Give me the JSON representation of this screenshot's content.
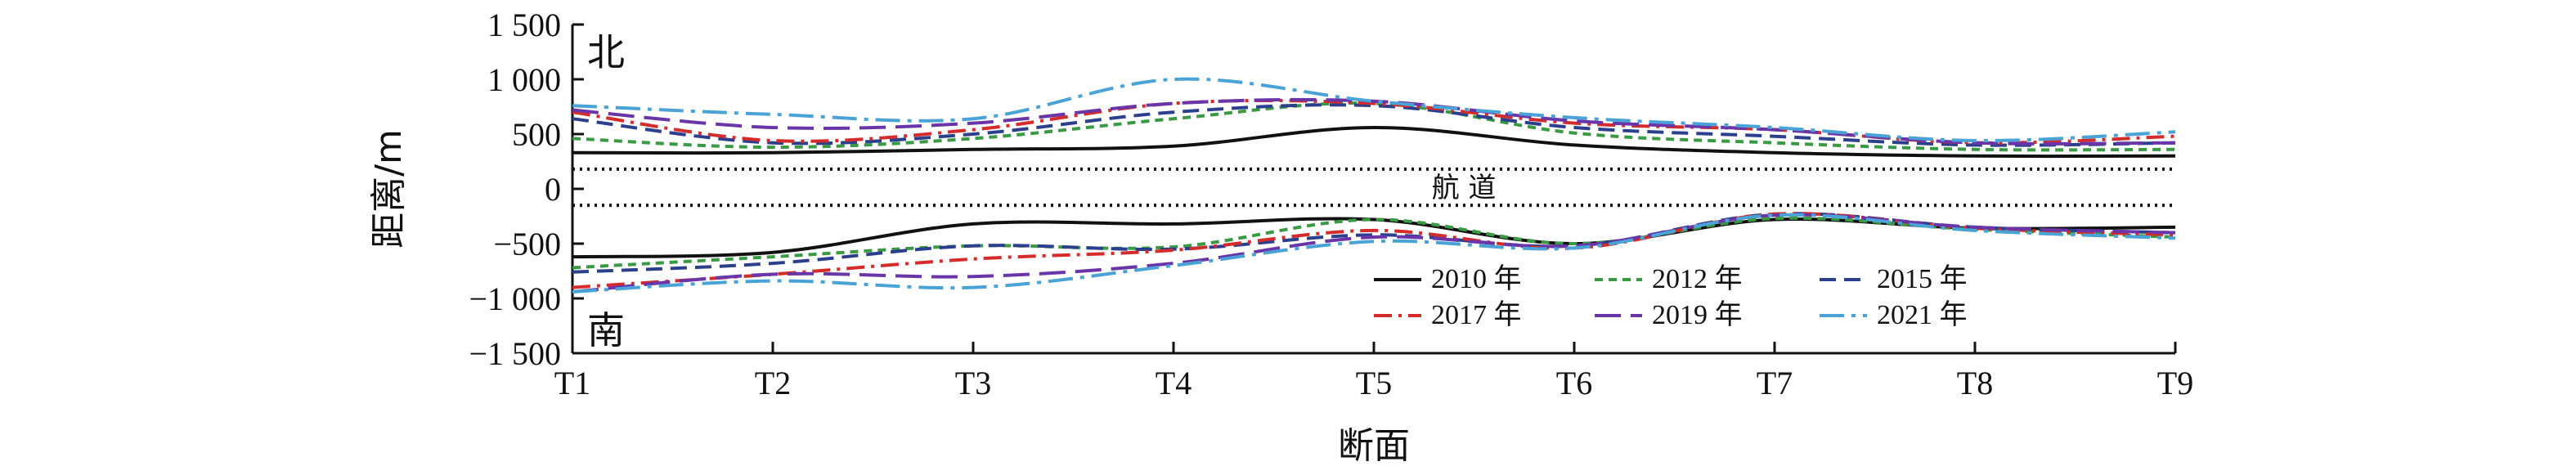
{
  "chart_data": {
    "type": "line",
    "title": "",
    "xlabel": "断面",
    "ylabel": "距离/m",
    "categories": [
      "T1",
      "T2",
      "T3",
      "T4",
      "T5",
      "T6",
      "T7",
      "T8",
      "T9"
    ],
    "x_ticks": [
      "T1",
      "T2",
      "T3",
      "T4",
      "T5",
      "T6",
      "T7",
      "T8",
      "T9"
    ],
    "y_ticks": [
      {
        "value": 1500,
        "label": "1 500"
      },
      {
        "value": 1000,
        "label": "1 000"
      },
      {
        "value": 500,
        "label": "500"
      },
      {
        "value": 0,
        "label": "0"
      },
      {
        "value": -500,
        "label": "−500"
      },
      {
        "value": -1000,
        "label": "−1 000"
      },
      {
        "value": -1500,
        "label": "−1 500"
      }
    ],
    "ylim": [
      -1500,
      1500
    ],
    "grid": false,
    "legend_position": "lower-right",
    "annotations": {
      "north": "北",
      "south": "南",
      "channel": "航 道"
    },
    "channel_lines": [
      180,
      -150
    ],
    "series": [
      {
        "name": "2010 年",
        "color": "#111111",
        "dash": "solid",
        "north": [
          330,
          330,
          360,
          390,
          560,
          400,
          330,
          300,
          300
        ],
        "south": [
          -620,
          -580,
          -320,
          -320,
          -280,
          -500,
          -280,
          -360,
          -350
        ]
      },
      {
        "name": "2012 年",
        "color": "#3a9a44",
        "dash": "dash-short",
        "north": [
          460,
          380,
          460,
          640,
          780,
          510,
          420,
          360,
          360
        ],
        "south": [
          -720,
          -620,
          -520,
          -530,
          -280,
          -500,
          -270,
          -370,
          -440
        ]
      },
      {
        "name": "2015 年",
        "color": "#2b3f8c",
        "dash": "dash",
        "north": [
          640,
          420,
          500,
          700,
          760,
          560,
          480,
          400,
          420
        ],
        "south": [
          -760,
          -680,
          -520,
          -550,
          -420,
          -520,
          -230,
          -350,
          -400
        ]
      },
      {
        "name": "2017 年",
        "color": "#d42b2b",
        "dash": "dash-dot",
        "north": [
          700,
          440,
          540,
          780,
          780,
          600,
          540,
          420,
          480
        ],
        "south": [
          -900,
          -780,
          -640,
          -560,
          -380,
          -540,
          -230,
          -360,
          -420
        ]
      },
      {
        "name": "2019 年",
        "color": "#6a35a8",
        "dash": "dash-long",
        "north": [
          720,
          560,
          600,
          780,
          800,
          620,
          540,
          420,
          420
        ],
        "south": [
          -940,
          -780,
          -800,
          -680,
          -440,
          -520,
          -240,
          -350,
          -400
        ]
      },
      {
        "name": "2021 年",
        "color": "#4aa3d6",
        "dash": "dash-dot-long",
        "north": [
          760,
          680,
          640,
          1000,
          800,
          650,
          560,
          440,
          520
        ],
        "south": [
          -940,
          -840,
          -900,
          -700,
          -480,
          -540,
          -240,
          -380,
          -450
        ]
      }
    ]
  }
}
